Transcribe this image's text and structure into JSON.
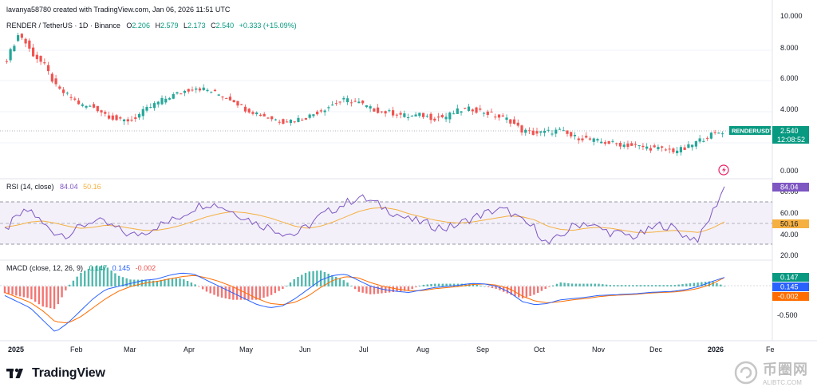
{
  "header": {
    "creator": "lavanya58780 created with TradingView.com, Jan 06, 2026 11:51 UTC",
    "symbol": "RENDER / TetherUS · 1D · Binance",
    "ohlc": {
      "o_label": "O",
      "o": "2.206",
      "h_label": "H",
      "h": "2.579",
      "l_label": "L",
      "l": "2.173",
      "c_label": "C",
      "c": "2.540",
      "change": "+0.333 (+15.09%)"
    }
  },
  "price_badge": {
    "ticker": "RENDERUSDT",
    "price": "2.540",
    "countdown": "12:08:52"
  },
  "rsi": {
    "label": "RSI (14, close)",
    "value": "84.04",
    "ma": "50.16",
    "value_badge": "84.04",
    "ma_badge": "50.16",
    "levels": [
      70,
      50,
      30
    ],
    "ylim": [
      15,
      90
    ],
    "ticks": [
      "80.00",
      "60.00",
      "40.00",
      "20.00"
    ]
  },
  "macd": {
    "label": "MACD (close, 12, 26, 9)",
    "macd": "0.147",
    "signal": "0.145",
    "hist": "-0.002",
    "badges": [
      "0.147",
      "0.145",
      "-0.002"
    ],
    "ticks": [
      "-0.500"
    ],
    "ylim": [
      -0.8,
      0.3
    ]
  },
  "price_axis": {
    "ticks": [
      "10.000",
      "8.000",
      "6.000",
      "4.000",
      "0.000"
    ],
    "ylim": [
      0,
      10
    ]
  },
  "time_axis": {
    "labels": [
      "2025",
      "Feb",
      "Mar",
      "Apr",
      "May",
      "Jun",
      "Jul",
      "Aug",
      "Sep",
      "Oct",
      "Nov",
      "Dec",
      "2026",
      "Fe"
    ]
  },
  "brand": {
    "name": "TradingView"
  },
  "watermark": {
    "main": "币圈网",
    "sub": "ALIBTC.COM"
  },
  "colors": {
    "up": "#26a69a",
    "down": "#ef5350",
    "rsi": "#7e57c2",
    "rsi_ma": "#f5b041",
    "macd": "#2962ff",
    "signal": "#ff6d00",
    "badge_green": "#089981",
    "grid": "#f0f3fa"
  },
  "chart_data": [
    {
      "type": "candlestick",
      "title": "RENDER / TetherUS · 1D · Binance",
      "x_months": [
        "2025-01",
        "2025-02",
        "2025-03",
        "2025-04",
        "2025-05",
        "2025-06",
        "2025-07",
        "2025-08",
        "2025-09",
        "2025-10",
        "2025-11",
        "2025-12",
        "2026-01"
      ],
      "close_series": [
        7.2,
        8.9,
        7.6,
        6.8,
        5.3,
        4.8,
        4.2,
        4.1,
        3.6,
        3.2,
        3.3,
        3.9,
        4.4,
        4.8,
        5.1,
        5.4,
        5.2,
        4.9,
        4.6,
        4.0,
        3.7,
        3.4,
        3.2,
        3.3,
        3.5,
        3.9,
        4.3,
        4.6,
        4.4,
        4.0,
        3.8,
        3.7,
        3.5,
        3.6,
        3.4,
        3.5,
        3.9,
        4.0,
        3.8,
        3.5,
        3.3,
        2.6,
        2.4,
        2.5,
        2.6,
        2.2,
        2.1,
        1.9,
        1.8,
        1.7,
        1.6,
        1.5,
        1.4,
        1.3,
        1.4,
        1.9,
        2.3,
        2.54
      ],
      "ylim": [
        0,
        10
      ]
    },
    {
      "type": "line",
      "title": "RSI (14, close)",
      "series": [
        {
          "name": "RSI",
          "values": [
            42,
            55,
            62,
            48,
            40,
            38,
            45,
            52,
            48,
            43,
            37,
            40,
            46,
            50,
            56,
            64,
            68,
            66,
            60,
            55,
            48,
            45,
            40,
            38,
            46,
            56,
            62,
            68,
            74,
            70,
            64,
            58,
            52,
            50,
            46,
            44,
            48,
            54,
            58,
            62,
            60,
            50,
            44,
            28,
            36,
            46,
            50,
            44,
            40,
            38,
            36,
            42,
            48,
            44,
            36,
            34,
            58,
            84.04
          ]
        },
        {
          "name": "MA",
          "values": [
            45,
            47,
            50,
            51,
            49,
            46,
            44,
            45,
            47,
            46,
            44,
            42,
            42,
            44,
            47,
            51,
            55,
            58,
            60,
            59,
            57,
            54,
            50,
            46,
            44,
            46,
            50,
            55,
            60,
            63,
            64,
            62,
            58,
            55,
            52,
            50,
            49,
            50,
            52,
            54,
            56,
            55,
            52,
            46,
            43,
            42,
            44,
            45,
            44,
            42,
            40,
            40,
            41,
            42,
            41,
            40,
            44,
            50.16
          ]
        }
      ],
      "ylim": [
        15,
        90
      ]
    },
    {
      "type": "bar+line",
      "title": "MACD (close, 12, 26, 9)",
      "series": [
        {
          "name": "MACD",
          "values": [
            -0.15,
            -0.25,
            -0.35,
            -0.55,
            -0.75,
            -0.6,
            -0.4,
            -0.2,
            -0.05,
            0.0,
            0.05,
            0.1,
            0.12,
            0.18,
            0.22,
            0.2,
            0.1,
            0.0,
            -0.1,
            -0.2,
            -0.3,
            -0.35,
            -0.32,
            -0.2,
            -0.05,
            0.1,
            0.18,
            0.2,
            0.1,
            0.0,
            -0.05,
            -0.08,
            -0.1,
            -0.06,
            -0.02,
            0.0,
            0.02,
            0.05,
            0.04,
            0.0,
            -0.1,
            -0.25,
            -0.3,
            -0.28,
            -0.22,
            -0.2,
            -0.18,
            -0.15,
            -0.14,
            -0.13,
            -0.12,
            -0.1,
            -0.09,
            -0.08,
            -0.05,
            0.0,
            0.08,
            0.147
          ]
        },
        {
          "name": "Signal",
          "values": [
            -0.1,
            -0.18,
            -0.26,
            -0.4,
            -0.58,
            -0.6,
            -0.5,
            -0.35,
            -0.2,
            -0.08,
            0.0,
            0.05,
            0.08,
            0.12,
            0.16,
            0.18,
            0.14,
            0.08,
            0.0,
            -0.1,
            -0.2,
            -0.28,
            -0.3,
            -0.26,
            -0.16,
            -0.02,
            0.1,
            0.16,
            0.14,
            0.06,
            0.0,
            -0.04,
            -0.07,
            -0.07,
            -0.04,
            -0.02,
            0.0,
            0.03,
            0.04,
            0.02,
            -0.04,
            -0.16,
            -0.24,
            -0.27,
            -0.25,
            -0.22,
            -0.2,
            -0.17,
            -0.15,
            -0.14,
            -0.13,
            -0.11,
            -0.1,
            -0.09,
            -0.07,
            -0.03,
            0.04,
            0.145
          ]
        }
      ],
      "ylim": [
        -0.8,
        0.3
      ]
    }
  ]
}
